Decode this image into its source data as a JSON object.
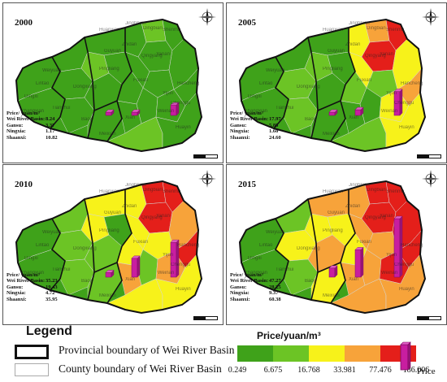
{
  "panels": [
    {
      "year": "2000",
      "stats": {
        "header": "Price/ yuan/m³",
        "rows": [
          {
            "label": "Wei River Basin:",
            "value": "8.24"
          },
          {
            "label": "Gansu:",
            "value": "3.37"
          },
          {
            "label": "Ningxia:",
            "value": "1.17"
          },
          {
            "label": "Shaanxi:",
            "value": "10.82"
          }
        ]
      },
      "bars": {
        "gansu": 3.37,
        "ningxia": 1.17,
        "shaanxi": 10.82
      },
      "regions": [
        "#3fa21a",
        "#3fa21a",
        "#3fa21a",
        "#3fa21a",
        "#6cc425",
        "#3fa21a",
        "#3fa21a",
        "#3fa21a",
        "#3fa21a",
        "#3fa21a",
        "#6cc425",
        "#3fa21a",
        "#3fa21a",
        "#3fa21a",
        "#3fa21a",
        "#3fa21a",
        "#3fa21a",
        "#3fa21a",
        "#3fa21a",
        "#3fa21a",
        "#3fa21a",
        "#6cc425",
        "#3fa21a",
        "#3fa21a"
      ]
    },
    {
      "year": "2005",
      "stats": {
        "header": "Price/ yuan/m³",
        "rows": [
          {
            "label": "Wei River Basin:",
            "value": "17.97"
          },
          {
            "label": "Gansu:",
            "value": "5.85"
          },
          {
            "label": "Ningxia:",
            "value": "1.60"
          },
          {
            "label": "Shaanxi:",
            "value": "24.60"
          }
        ]
      },
      "bars": {
        "gansu": 5.85,
        "ningxia": 1.6,
        "shaanxi": 24.6
      },
      "regions": [
        "#3fa21a",
        "#3fa21a",
        "#3fa21a",
        "#6cc425",
        "#6cc425",
        "#3fa21a",
        "#6cc425",
        "#3fa21a",
        "#3fa21a",
        "#f7f21a",
        "#f7a33a",
        "#e41f1a",
        "#e41f1a",
        "#f7f21a",
        "#6cc425",
        "#3fa21a",
        "#3fa21a",
        "#6cc425",
        "#f7f21a",
        "#f7a33a",
        "#3fa21a",
        "#6cc425",
        "#f7f21a",
        "#f7f21a"
      ]
    },
    {
      "year": "2010",
      "stats": {
        "header": "Price/ yuan/m³",
        "rows": [
          {
            "label": "Wei River Basin:",
            "value": "35.23"
          },
          {
            "label": "Gansu:",
            "value": "19.43"
          },
          {
            "label": "Ningxia:",
            "value": "4.72"
          },
          {
            "label": "Shaanxi:",
            "value": "35.95"
          }
        ]
      },
      "bars": {
        "gansu": 19.43,
        "ningxia": 4.72,
        "shaanxi": 35.95
      },
      "regions": [
        "#f7f21a",
        "#6cc425",
        "#3fa21a",
        "#6cc425",
        "#f7f21a",
        "#3fa21a",
        "#6cc425",
        "#3fa21a",
        "#6cc425",
        "#f7f21a",
        "#e41f1a",
        "#e41f1a",
        "#e41f1a",
        "#f7f21a",
        "#f7f21a",
        "#6cc425",
        "#f7a33a",
        "#f7f21a",
        "#f7a33a",
        "#e41f1a",
        "#6cc425",
        "#f7f21a",
        "#f7a33a",
        "#f7f21a"
      ]
    },
    {
      "year": "2015",
      "stats": {
        "header": "Price/ yuan/m³",
        "rows": [
          {
            "label": "Wei River Basin:",
            "value": "47.27"
          },
          {
            "label": "Gansu:",
            "value": "28.25"
          },
          {
            "label": "Ningxia:",
            "value": "9.37"
          },
          {
            "label": "Shaanxi:",
            "value": "60.38"
          }
        ]
      },
      "bars": {
        "gansu": 28.25,
        "ningxia": 9.37,
        "shaanxi": 60.38
      },
      "regions": [
        "#f7a33a",
        "#6cc425",
        "#3fa21a",
        "#f7f21a",
        "#f7f21a",
        "#3fa21a",
        "#6cc425",
        "#f7f21a",
        "#f7a33a",
        "#f7a33a",
        "#e41f1a",
        "#e41f1a",
        "#e41f1a",
        "#f7a33a",
        "#f7f21a",
        "#f7f21a",
        "#f7a33a",
        "#f7a33a",
        "#e41f1a",
        "#e41f1a",
        "#f7a33a",
        "#f7a33a",
        "#e41f1a",
        "#f7a33a"
      ]
    }
  ],
  "legend": {
    "title": "Legend",
    "provincial": "Provincial boundary of Wei River Basin",
    "county": "County boundary of Wei River Basin",
    "price_title": "Price/yuan/m³",
    "class_colors": [
      "#3fa21a",
      "#6cc425",
      "#f7f21a",
      "#f7a33a",
      "#e41f1a"
    ],
    "breaks": [
      "0.249",
      "6.675",
      "16.768",
      "33.981",
      "77.476",
      "186.006"
    ],
    "price_label": "Price",
    "bar_color": "#c81ea0"
  },
  "place_names": [
    "Huanxian",
    "Jinghbian",
    "Dingbian",
    "Shenmu",
    "Zhidan",
    "Yanan",
    "Fuxian",
    "Hancheng",
    "Weinan",
    "Xian",
    "Baoji",
    "Tianshui",
    "Dingxi",
    "Lintao",
    "Zhangxian",
    "Guyuan",
    "Pingliang",
    "Qingyang",
    "Yijun",
    "Huayin",
    "Meixian",
    "Weiyuan",
    "Dongxiang",
    "Chenggu"
  ]
}
